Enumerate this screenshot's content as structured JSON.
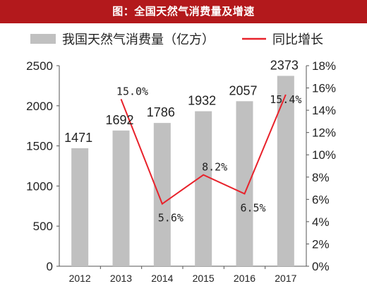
{
  "header": {
    "title": "图：全国天然气消费量及增速"
  },
  "colors": {
    "title_bg": "#b3191c",
    "bar": "#c0c0c0",
    "line": "#e8222b"
  },
  "chart_data": {
    "type": "bar",
    "categories": [
      "2012",
      "2013",
      "2014",
      "2015",
      "2016",
      "2017"
    ],
    "series": [
      {
        "name": "我国天然气消费量（亿方）",
        "type": "bar",
        "axis": "left",
        "values": [
          1471,
          1692,
          1786,
          1932,
          2057,
          2373
        ]
      },
      {
        "name": "同比增长",
        "type": "line",
        "axis": "right",
        "values": [
          null,
          15.0,
          5.6,
          8.2,
          6.5,
          15.4
        ]
      }
    ],
    "value_labels": [
      "1471",
      "1692",
      "1786",
      "1932",
      "2057",
      "2373"
    ],
    "growth_labels": [
      "",
      "15.0%",
      "5.6%",
      "8.2%",
      "6.5%",
      "15.4%"
    ],
    "left_axis": {
      "ylim": [
        0,
        2500
      ],
      "ticks": [
        "0",
        "500",
        "1000",
        "1500",
        "2000",
        "2500"
      ]
    },
    "right_axis": {
      "ylim": [
        0,
        18
      ],
      "ticks": [
        "0%",
        "2%",
        "4%",
        "6%",
        "8%",
        "10%",
        "12%",
        "14%",
        "16%",
        "18%"
      ]
    },
    "legend_position": "top",
    "grid": false
  }
}
